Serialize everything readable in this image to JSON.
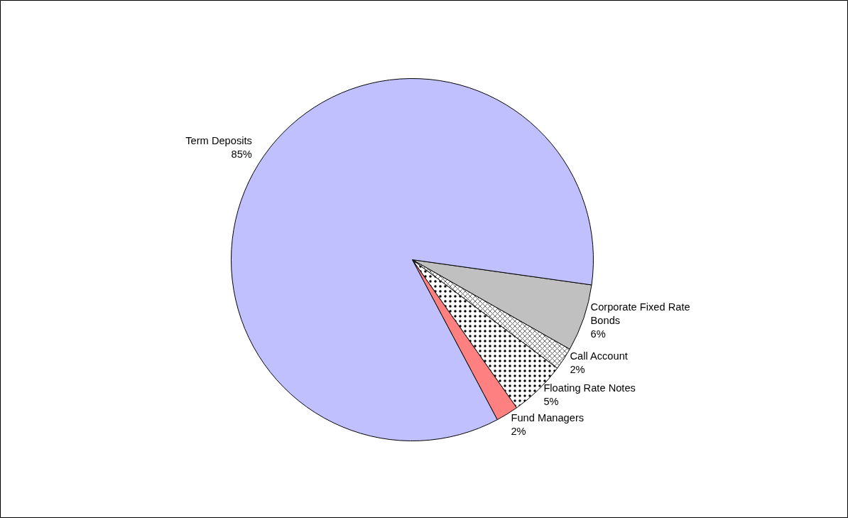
{
  "chart_data": {
    "type": "pie",
    "categories": [
      "Corporate Fixed Rate Bonds",
      "Call Account",
      "Floating Rate Notes",
      "Fund Managers",
      "Term Deposits"
    ],
    "values": [
      6,
      2,
      5,
      2,
      85
    ],
    "value_labels": [
      "6%",
      "2%",
      "5%",
      "2%",
      "85%"
    ],
    "colors": [
      "#c0c0c0",
      "#ffffff",
      "#ffffff",
      "#ff8080",
      "#c0c0ff"
    ]
  }
}
